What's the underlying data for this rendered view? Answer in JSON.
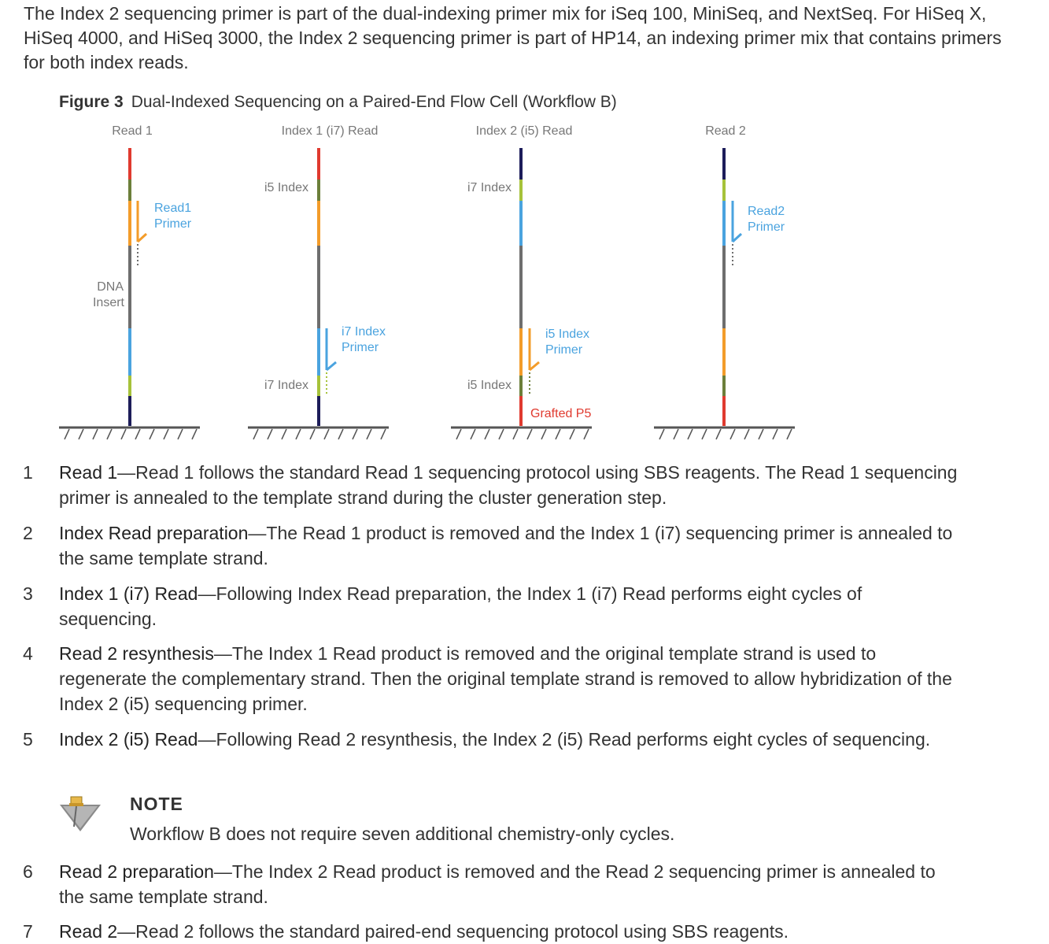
{
  "intro_text": "The Index 2 sequencing primer is part of the dual-indexing primer mix for iSeq 100, MiniSeq, and NextSeq. For HiSeq X, HiSeq 4000, and HiSeq 3000, the Index 2 sequencing primer is part of HP14, an indexing primer mix that contains primers for both index reads.",
  "figure": {
    "label": "Figure 3",
    "title": "Dual-Indexed Sequencing on a Paired-End Flow Cell (Workflow B)",
    "columns": [
      {
        "heading": "Read 1"
      },
      {
        "heading": "Index 1 (i7) Read"
      },
      {
        "heading": "Index 2 (i5) Read"
      },
      {
        "heading": "Read 2"
      }
    ],
    "labels": {
      "dna_insert_1": "DNA",
      "dna_insert_2": "Insert",
      "read1_primer_1": "Read1",
      "read1_primer_2": "Primer",
      "i5_index_col2": "i5 Index",
      "i7_index_col2": "i7 Index",
      "i7_primer_1": "i7 Index",
      "i7_primer_2": "Primer",
      "i7_index_col3": "i7 Index",
      "i5_index_col3": "i5 Index",
      "i5_primer_1": "i5 Index",
      "i5_primer_2": "Primer",
      "grafted_p5": "Grafted P5",
      "read2_primer_1": "Read2",
      "read2_primer_2": "Primer"
    },
    "colors": {
      "red": "#e03a2f",
      "olive": "#6c7f3a",
      "lime": "#a6c23a",
      "orange": "#f39c2a",
      "gray": "#6e6e6e",
      "blue": "#4aa3df",
      "navy": "#1d1d5a",
      "label_blue": "#4aa3df",
      "label_red": "#e03a2f"
    }
  },
  "steps": [
    {
      "num": "1",
      "term": "Read 1",
      "text": "—Read 1 follows the standard Read 1 sequencing protocol using SBS reagents. The Read 1 sequencing primer is annealed to the template strand during the cluster generation step."
    },
    {
      "num": "2",
      "term": "Index Read preparation",
      "text": "—The Read 1 product is removed and the Index 1 (i7) sequencing primer is annealed to the same template strand."
    },
    {
      "num": "3",
      "term": "Index 1 (i7) Read",
      "text": "—Following Index Read preparation, the Index 1 (i7) Read performs eight cycles of sequencing."
    },
    {
      "num": "4",
      "term": "Read 2 resynthesis",
      "text": "—The Index 1 Read product is removed and the original template strand is used to regenerate the complementary strand. Then the original template strand is removed to allow hybridization of the Index 2 (i5) sequencing primer."
    },
    {
      "num": "5",
      "term": "Index 2 (i5) Read",
      "text": "—Following Read 2 resynthesis, the Index 2 (i5) Read performs eight cycles of sequencing."
    },
    {
      "num": "6",
      "term": "Read 2 preparation",
      "text": "—The Index 2 Read product is removed and the Read 2 sequencing primer is annealed to the same template strand."
    },
    {
      "num": "7",
      "term": "Read 2",
      "text": "—Read 2 follows the standard paired-end sequencing protocol using SBS reagents."
    }
  ],
  "note": {
    "title": "NOTE",
    "text": "Workflow B does not require seven additional chemistry-only cycles.",
    "icon": "pushpin-note-icon"
  }
}
